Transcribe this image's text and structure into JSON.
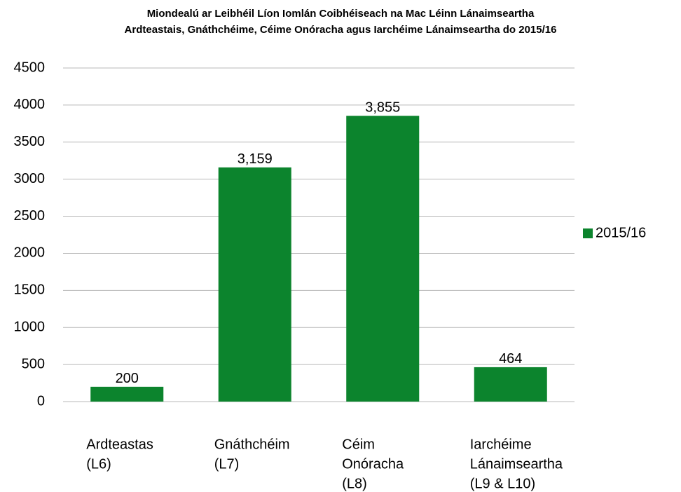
{
  "chart_data": {
    "type": "bar",
    "title": [
      "Miondealú ar Leibhéil Líon Iomlán Coibhéiseach na Mac Léinn Lánaimseartha",
      "Ardteastais, Gnáthchéime, Céime Onóracha agus Iarchéime Lánaimseartha do 2015/16"
    ],
    "categories": [
      [
        "Ardteastas",
        "(L6)"
      ],
      [
        "Gnáthchéim",
        "(L7)"
      ],
      [
        "Céim",
        "Onóracha",
        "(L8)"
      ],
      [
        "Iarchéime",
        "Lánaimseartha",
        "(L9 & L10)"
      ]
    ],
    "series": [
      {
        "name": "2015/16",
        "color": "#0c842d",
        "values": [
          200,
          3159,
          3855,
          464
        ],
        "value_labels": [
          "200",
          "3,159",
          "3,855",
          "464"
        ]
      }
    ],
    "ylim": [
      0,
      4500
    ],
    "yticks": [
      0,
      500,
      1000,
      1500,
      2000,
      2500,
      3000,
      3500,
      4000,
      4500
    ],
    "grid": true,
    "legend": "right"
  }
}
